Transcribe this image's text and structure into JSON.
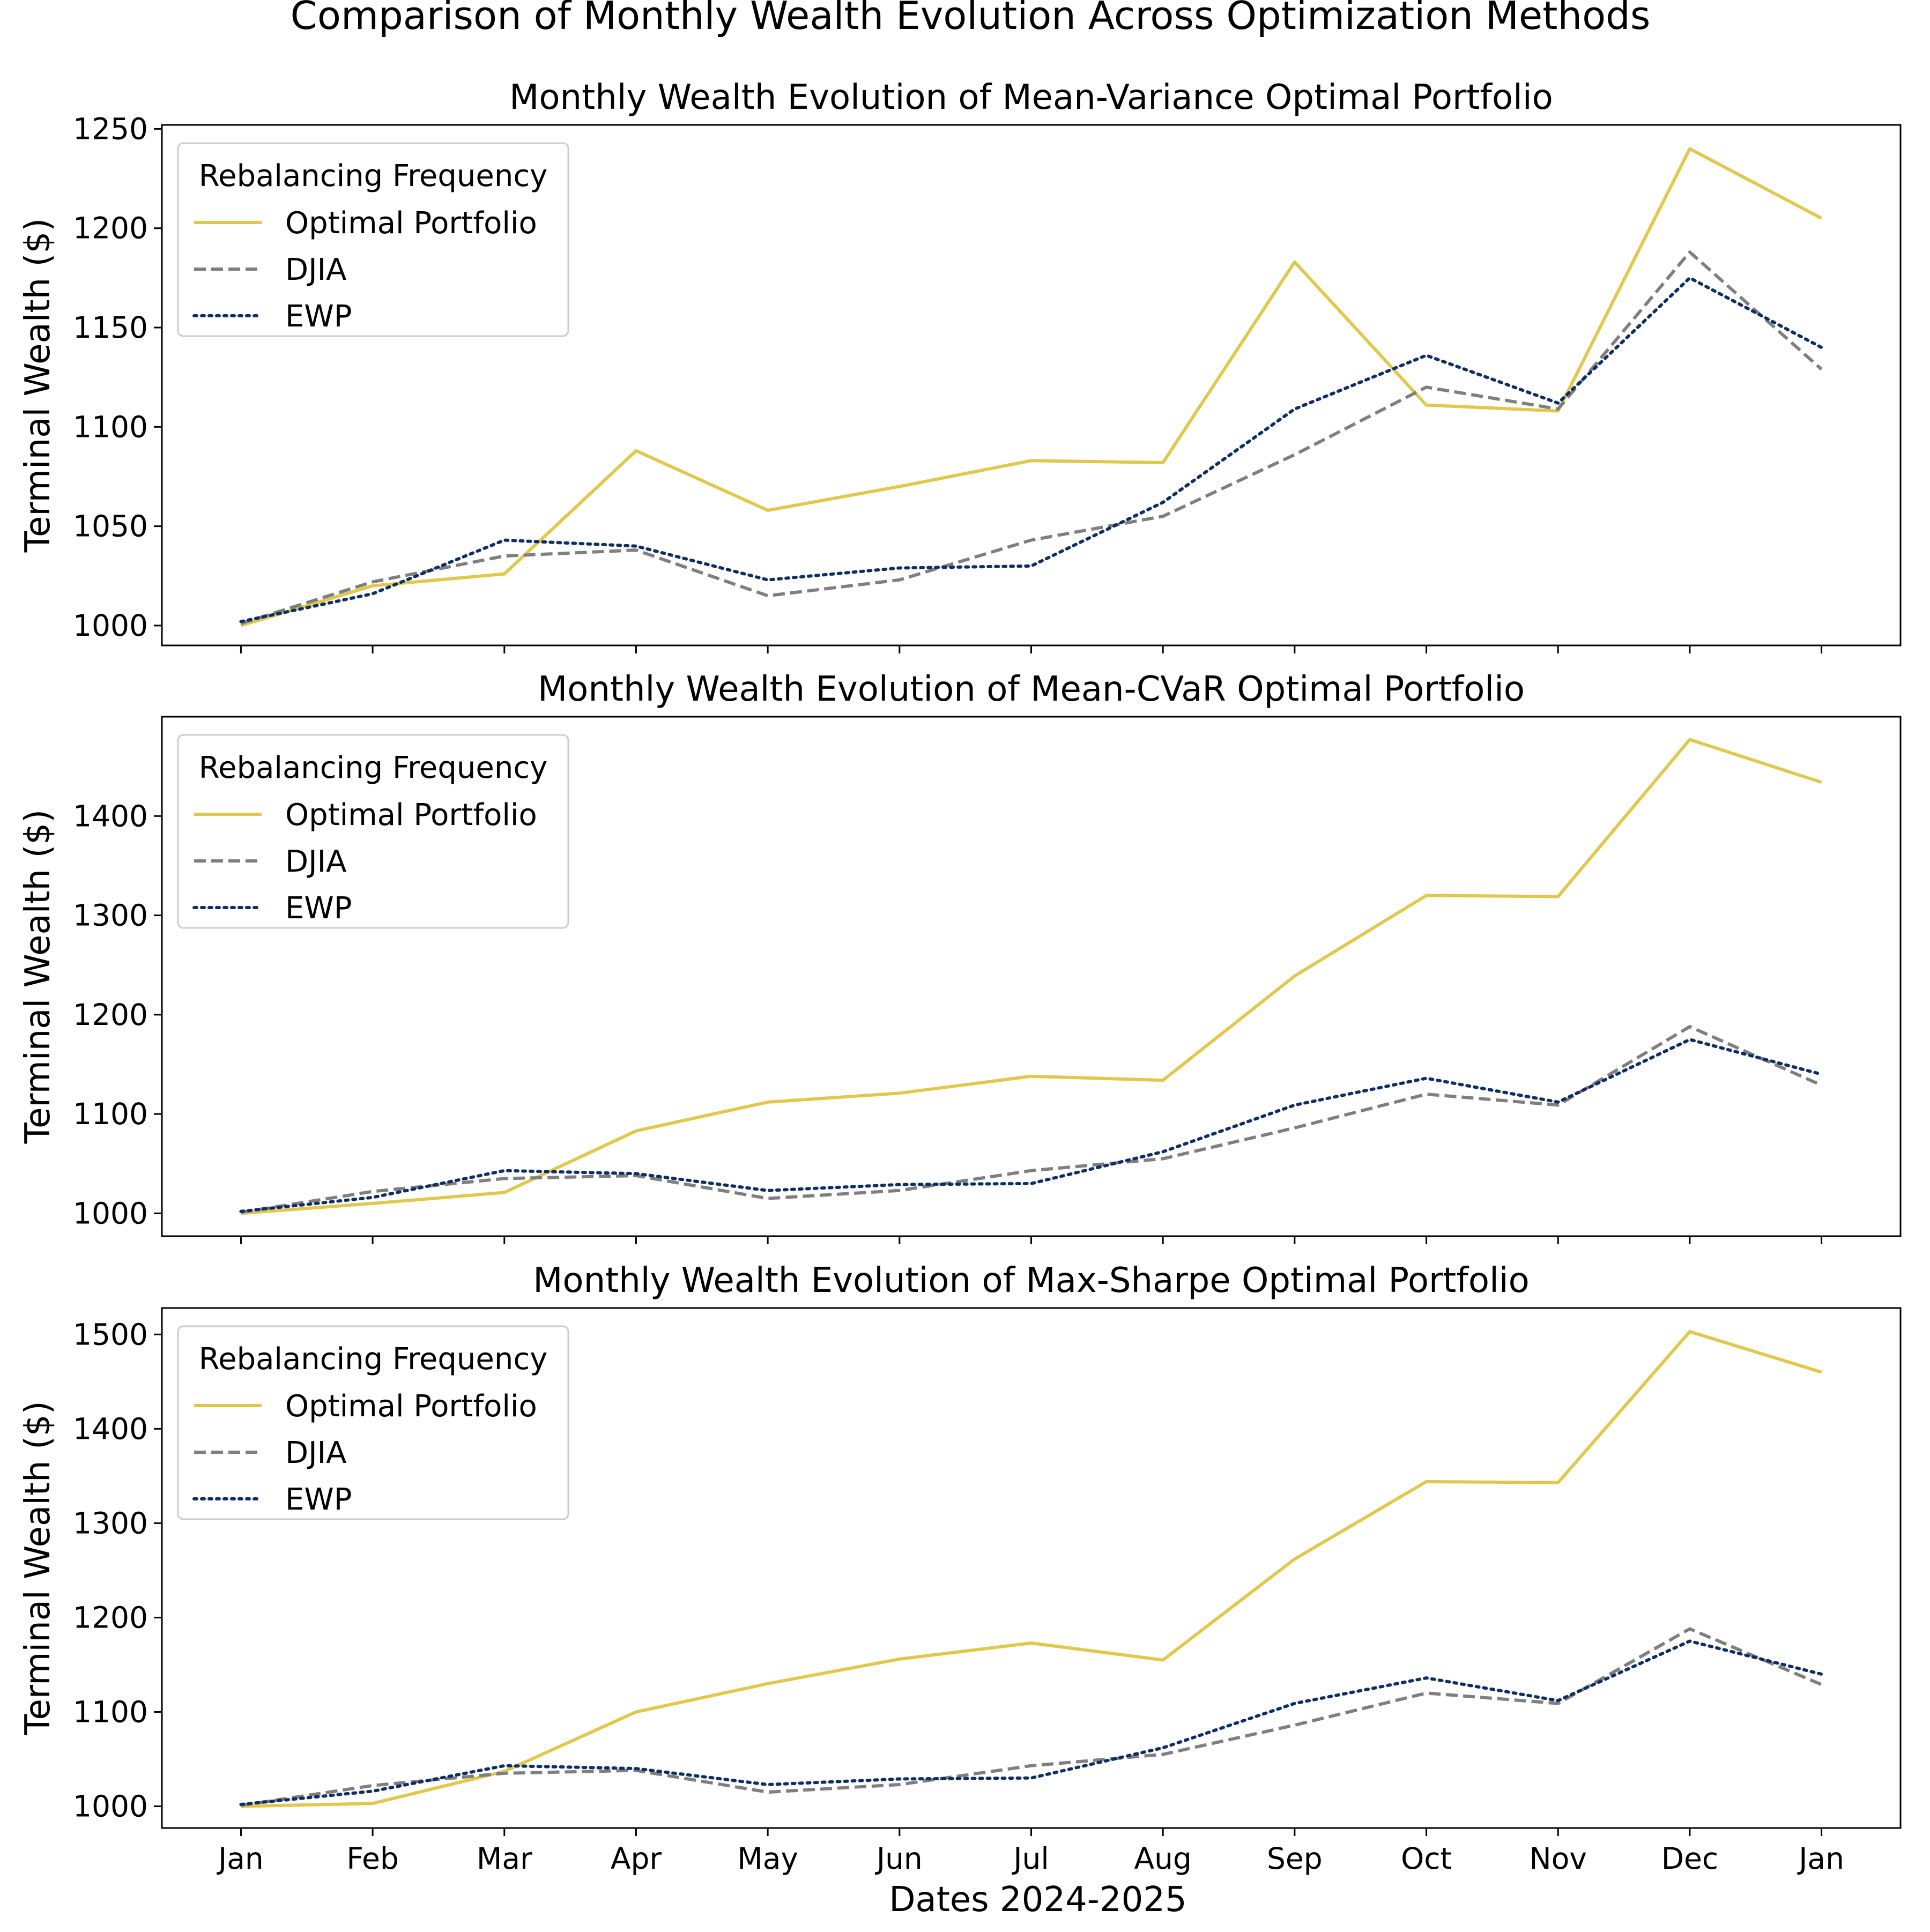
{
  "figure": {
    "title": "Comparison of Monthly Wealth Evolution Across Optimization Methods",
    "xlabel": "Dates 2024-2025"
  },
  "chart_data": [
    {
      "type": "line",
      "title": "Monthly Wealth Evolution of Mean-Variance Optimal Portfolio",
      "xlabel": "",
      "ylabel": "Terminal Wealth ($)",
      "categories": [
        "Jan",
        "Feb",
        "Mar",
        "Apr",
        "May",
        "Jun",
        "Jul",
        "Aug",
        "Sep",
        "Oct",
        "Nov",
        "Dec",
        "Jan"
      ],
      "show_x_tick_labels": false,
      "ylim": [
        990,
        1252
      ],
      "yticks": [
        1000,
        1050,
        1100,
        1150,
        1200,
        1250
      ],
      "legend": {
        "title": "Rebalancing Frequency",
        "position": "upper-left"
      },
      "grid": false,
      "series": [
        {
          "name": "Optimal Portfolio",
          "style": "solid",
          "color": "#e1c84d",
          "values": [
            1000,
            1020,
            1026,
            1088,
            1058,
            1070,
            1083,
            1082,
            1183,
            1111,
            1108,
            1240,
            1205
          ]
        },
        {
          "name": "DJIA",
          "style": "dashed",
          "color": "#7f7f7f",
          "values": [
            1001,
            1022,
            1035,
            1038,
            1015,
            1023,
            1043,
            1055,
            1086,
            1120,
            1109,
            1188,
            1129
          ]
        },
        {
          "name": "EWP",
          "style": "dotted",
          "color": "#0e2f63",
          "values": [
            1002,
            1016,
            1043,
            1040,
            1023,
            1029,
            1030,
            1062,
            1109,
            1136,
            1112,
            1175,
            1140
          ]
        }
      ]
    },
    {
      "type": "line",
      "title": "Monthly Wealth Evolution of Mean-CVaR Optimal Portfolio",
      "xlabel": "",
      "ylabel": "Terminal Wealth ($)",
      "categories": [
        "Jan",
        "Feb",
        "Mar",
        "Apr",
        "May",
        "Jun",
        "Jul",
        "Aug",
        "Sep",
        "Oct",
        "Nov",
        "Dec",
        "Jan"
      ],
      "show_x_tick_labels": false,
      "ylim": [
        977,
        1500
      ],
      "yticks": [
        1000,
        1100,
        1200,
        1300,
        1400
      ],
      "legend": {
        "title": "Rebalancing Frequency",
        "position": "upper-left"
      },
      "grid": false,
      "series": [
        {
          "name": "Optimal Portfolio",
          "style": "solid",
          "color": "#e1c84d",
          "values": [
            1000,
            1010,
            1021,
            1083,
            1112,
            1121,
            1138,
            1134,
            1239,
            1320,
            1319,
            1477,
            1434
          ]
        },
        {
          "name": "DJIA",
          "style": "dashed",
          "color": "#7f7f7f",
          "values": [
            1001,
            1022,
            1035,
            1038,
            1015,
            1023,
            1043,
            1055,
            1086,
            1120,
            1109,
            1188,
            1129
          ]
        },
        {
          "name": "EWP",
          "style": "dotted",
          "color": "#0e2f63",
          "values": [
            1002,
            1016,
            1043,
            1040,
            1023,
            1029,
            1030,
            1062,
            1109,
            1136,
            1112,
            1175,
            1140
          ]
        }
      ]
    },
    {
      "type": "line",
      "title": "Monthly Wealth Evolution of Max-Sharpe Optimal Portfolio",
      "xlabel": "Dates 2024-2025",
      "ylabel": "Terminal Wealth ($)",
      "categories": [
        "Jan",
        "Feb",
        "Mar",
        "Apr",
        "May",
        "Jun",
        "Jul",
        "Aug",
        "Sep",
        "Oct",
        "Nov",
        "Dec",
        "Jan"
      ],
      "show_x_tick_labels": true,
      "ylim": [
        977,
        1528
      ],
      "yticks": [
        1000,
        1100,
        1200,
        1300,
        1400,
        1500
      ],
      "legend": {
        "title": "Rebalancing Frequency",
        "position": "upper-left"
      },
      "grid": false,
      "series": [
        {
          "name": "Optimal Portfolio",
          "style": "solid",
          "color": "#e1c84d",
          "values": [
            1000,
            1003,
            1037,
            1100,
            1130,
            1156,
            1173,
            1155,
            1262,
            1344,
            1343,
            1503,
            1460
          ]
        },
        {
          "name": "DJIA",
          "style": "dashed",
          "color": "#7f7f7f",
          "values": [
            1001,
            1022,
            1035,
            1038,
            1015,
            1023,
            1043,
            1055,
            1086,
            1120,
            1109,
            1188,
            1129
          ]
        },
        {
          "name": "EWP",
          "style": "dotted",
          "color": "#0e2f63",
          "values": [
            1002,
            1016,
            1043,
            1040,
            1023,
            1029,
            1030,
            1062,
            1109,
            1136,
            1112,
            1175,
            1140
          ]
        }
      ]
    }
  ]
}
